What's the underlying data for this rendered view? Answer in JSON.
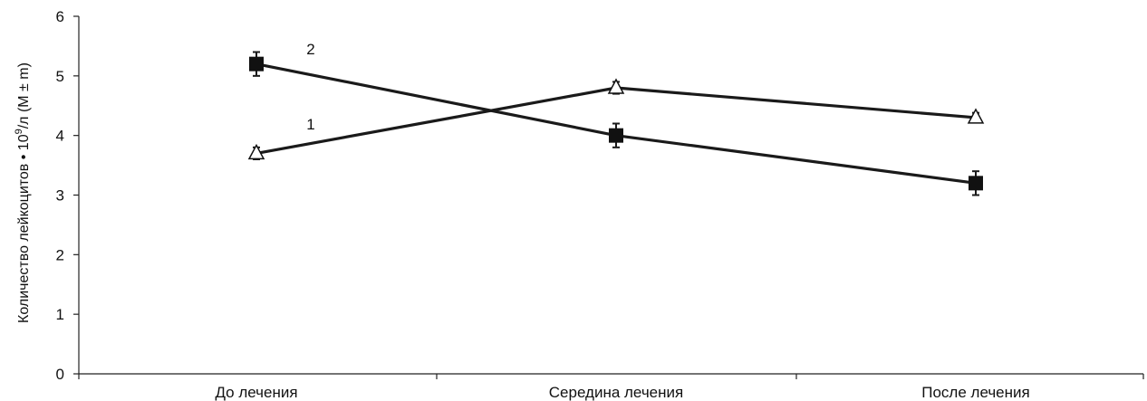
{
  "chart_data": {
    "type": "line",
    "categories": [
      "До лечения",
      "Середина лечения",
      "После лечения"
    ],
    "ylabel": {
      "before": "Количество лейкоцитов • 10",
      "sup": "9",
      "after": "/л (M ± m)"
    },
    "ylim": [
      0,
      6
    ],
    "yticks": [
      "0",
      "1",
      "2",
      "3",
      "4",
      "5",
      "6"
    ],
    "series": [
      {
        "name": "1",
        "marker": "triangle-open",
        "values": [
          3.7,
          4.8,
          4.3
        ],
        "errors": [
          0.1,
          0.1,
          0.08
        ]
      },
      {
        "name": "2",
        "marker": "square-filled",
        "values": [
          5.2,
          4.0,
          3.2
        ],
        "errors": [
          0.2,
          0.2,
          0.2
        ]
      }
    ],
    "grid": false,
    "colors": {
      "line": "#1a1a1a",
      "axis": "#222222"
    }
  }
}
